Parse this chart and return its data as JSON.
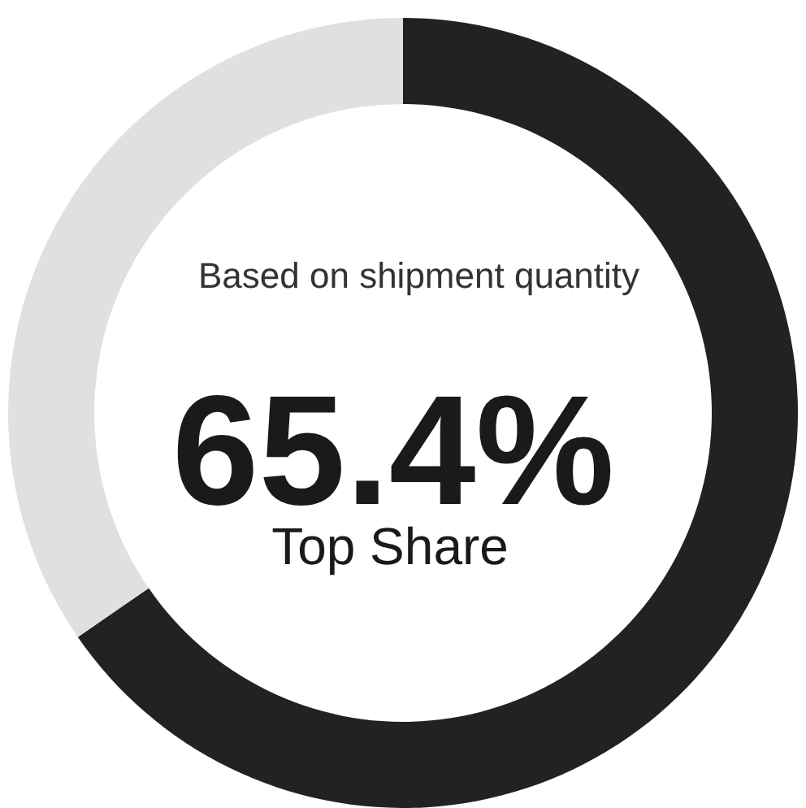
{
  "chart_data": {
    "type": "donut",
    "categories": [
      null,
      null
    ],
    "values": [
      65.4,
      34.6
    ],
    "colors": [
      "#222222",
      "#e0e0e0"
    ],
    "value_labels": [
      "65.4%",
      null
    ],
    "annotations": [
      "Based on shipment quantity",
      "Top Share"
    ]
  }
}
